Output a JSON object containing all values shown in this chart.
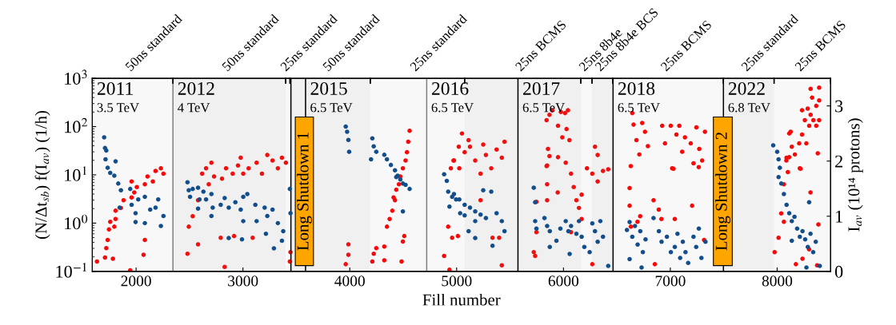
{
  "chart_data": {
    "type": "scatter",
    "xlabel": "Fill number",
    "ylabel": "(N/Δt$_{sb}$) f(I$_{av}$) (1/h)",
    "y2label": "I$_{av}$ (10¹⁴ protons)",
    "xlim": [
      1590,
      8500
    ],
    "xticks": [
      2000,
      3000,
      4000,
      5000,
      6000,
      7000,
      8000
    ],
    "log": "y",
    "ylim": [
      0.1,
      1000
    ],
    "yticks": [
      {
        "value": 0.1,
        "label": "10$^{−1}$"
      },
      {
        "value": 1,
        "label": "10$^{0}$"
      },
      {
        "value": 10,
        "label": "10$^{1}$"
      },
      {
        "value": 100,
        "label": "10$^{2}$"
      },
      {
        "value": 1000,
        "label": "10$^{3}$"
      }
    ],
    "y2lim": [
      0,
      3.5
    ],
    "y2ticks": [
      0,
      1,
      2,
      3
    ],
    "annotations": [
      "2011\n3.5 TeV"
    ],
    "marker": "circle",
    "series": [
      {
        "axis": "y2",
        "color": "#ff0000",
        "x": [
          1634,
          1709,
          1721,
          1734,
          1746,
          1758,
          1783,
          1796,
          1808,
          1808,
          1858,
          1883,
          1958,
          1983,
          1958,
          2007,
          2082,
          2107,
          2157,
          2182,
          2232,
          2256,
          2070,
          2082,
          1945,
          2481,
          2493,
          2530,
          2580,
          2618,
          2655,
          2705,
          2730,
          2680,
          2804,
          2842,
          2904,
          2954,
          2979,
          3003,
          3053,
          3128,
          3178,
          3228,
          3277,
          3327,
          3365,
          2580,
          2792,
          2917,
          3091,
          2829,
          3402,
          3439,
          3445,
          3962,
          3987,
          3987,
          4211,
          4224,
          4248,
          4323,
          4323,
          4348,
          4373,
          4398,
          4410,
          4435,
          4460,
          4473,
          4497,
          4522,
          4535,
          4547,
          4560,
          4497,
          4510,
          4485,
          4423,
          4883,
          4921,
          4958,
          4933,
          4946,
          4971,
          5020,
          4975,
          5025,
          5075,
          5125,
          5174,
          5224,
          5050,
          5112,
          5274,
          5324,
          5374,
          5423,
          5448,
          5249,
          5224,
          5336,
          5398,
          5423,
          5012,
          5842,
          5869,
          5895,
          5976,
          6015,
          6042,
          5949,
          6029,
          5989,
          5855,
          5869,
          5949,
          5842,
          6056,
          5722,
          5735,
          5747,
          5847,
          5847,
          5847,
          5946,
          6021,
          6071,
          6096,
          6121,
          6145,
          6170,
          6220,
          6270,
          6320,
          6370,
          6419,
          6295,
          6320,
          6170,
          6270,
          5747,
          6071,
          6644,
          6656,
          6737,
          6763,
          6683,
          6790,
          6710,
          6630,
          6924,
          7004,
          7057,
          7084,
          7137,
          6950,
          7111,
          7191,
          7271,
          7244,
          7324,
          7217,
          7298,
          7030,
          6619,
          6619,
          6631,
          6693,
          6718,
          6843,
          6892,
          6917,
          7042,
          7204,
          6855,
          7316,
          7017,
          7266,
          8313,
          8393,
          8327,
          8366,
          8393,
          8286,
          8233,
          8313,
          8259,
          8339,
          8393,
          8300,
          8366,
          8233,
          8273,
          8206,
          8166,
          8380,
          8126,
          8113,
          8086,
          8219,
          8113,
          8137,
          8088,
          8100,
          8063,
          8038,
          8063,
          8013,
          7976,
          8175,
          8237,
          8312,
          8386,
          8374,
          8299,
          8212
        ],
        "values": [
          0.18,
          0.25,
          0.42,
          0.57,
          0.76,
          0.9,
          0.23,
          0.81,
          0.95,
          1.1,
          1.15,
          1.29,
          1.34,
          1.43,
          1.63,
          1.53,
          1.58,
          1.72,
          1.63,
          1.82,
          1.87,
          1.77,
          0.3,
          0.57,
          0.02,
          0.32,
          0.81,
          1.0,
          1.29,
          1.77,
          1.87,
          1.97,
          1.72,
          1.58,
          1.68,
          1.87,
          1.77,
          1.92,
          2.06,
          1.77,
          1.87,
          1.97,
          1.77,
          2.11,
          2.01,
          1.87,
          2.06,
          0.49,
          0.61,
          0.64,
          0.61,
          0.08,
          1.97,
          0.18,
          0.35,
          0.13,
          0.3,
          0.49,
          0.18,
          0.32,
          0.42,
          0.45,
          0.2,
          0.81,
          0.95,
          1.1,
          1.34,
          1.48,
          1.58,
          1.72,
          1.87,
          2.01,
          2.16,
          2.35,
          2.55,
          0.54,
          0.64,
          0.18,
          1.29,
          0.28,
          0.81,
          0.61,
          0.03,
          1.87,
          2.01,
          2.26,
          2.01,
          1.87,
          2.16,
          2.26,
          2.01,
          1.77,
          2.5,
          2.38,
          2.11,
          1.87,
          2.21,
          2.06,
          2.35,
          2.3,
          1.29,
          0.61,
          0.61,
          0.11,
          0.64,
          2.74,
          2.84,
          2.92,
          2.89,
          2.87,
          2.92,
          2.64,
          2.58,
          2.43,
          2.22,
          2.09,
          2.07,
          1.91,
          2.38,
          0.35,
          0.28,
          0.71,
          1.29,
          1.58,
          1.92,
          1.43,
          1.97,
          1.77,
          1.53,
          1.29,
          1.15,
          1.39,
          1.87,
          1.77,
          1.63,
          1.82,
          1.85,
          2.26,
          2.11,
          0.95,
          0.13,
          1.26,
          0.71,
          2.87,
          2.66,
          2.69,
          2.53,
          2.38,
          2.27,
          2.12,
          1.91,
          2.64,
          2.64,
          2.48,
          2.64,
          2.43,
          2.32,
          2.17,
          2.32,
          2.22,
          2.61,
          2.53,
          1.96,
          2.01,
          1.86,
          1.51,
          1.19,
          0.81,
          0.9,
          1.0,
          1.29,
          1.12,
          0.95,
          0.95,
          1.19,
          0.13,
          0.57,
          1.87,
          1.89,
          3.31,
          3.33,
          3.15,
          3.0,
          3.1,
          2.95,
          2.92,
          2.84,
          2.74,
          2.74,
          2.74,
          2.64,
          2.64,
          2.48,
          2.32,
          2.32,
          2.12,
          2.14,
          2.53,
          2.07,
          2.01,
          1.86,
          2.5,
          2.26,
          2.06,
          1.8,
          1.58,
          1.05,
          0.9,
          0.61,
          0.35,
          0.13,
          0.23,
          1.43,
          0.85,
          0.11,
          0.4,
          1.87
        ]
      },
      {
        "color": "#124e8c",
        "x": [
          1701,
          1709,
          1721,
          1714,
          1734,
          1758,
          1808,
          1796,
          1833,
          1858,
          1846,
          1945,
          1958,
          1995,
          2020,
          1995,
          2082,
          2082,
          2132,
          2182,
          2232,
          2256,
          2207,
          2481,
          2493,
          2505,
          2530,
          2580,
          2593,
          2630,
          2655,
          2705,
          2717,
          2580,
          2705,
          2792,
          2829,
          2867,
          2929,
          2979,
          3003,
          3041,
          3003,
          3116,
          3128,
          3203,
          3228,
          3277,
          3215,
          3290,
          3327,
          3377,
          3365,
          3439,
          3445,
          2867,
          2991,
          3962,
          3975,
          3987,
          3994,
          4211,
          4224,
          4199,
          4248,
          4323,
          4348,
          4385,
          4423,
          4448,
          4473,
          4497,
          4522,
          4560,
          4435,
          4497,
          4883,
          4908,
          4921,
          4958,
          4995,
          4933,
          5033,
          4975,
          5025,
          5075,
          5125,
          5174,
          5224,
          5274,
          5075,
          5174,
          5249,
          5324,
          5374,
          5423,
          5448,
          5112,
          5174,
          5336,
          5722,
          5735,
          5735,
          5747,
          5822,
          5847,
          5872,
          5872,
          5934,
          5971,
          6021,
          6046,
          6071,
          6121,
          6145,
          6170,
          6195,
          6270,
          6295,
          6320,
          6345,
          6370,
          6419,
          6058,
          6245,
          6594,
          6619,
          6644,
          6669,
          6694,
          6719,
          6768,
          6743,
          6619,
          6843,
          6893,
          6918,
          6968,
          7005,
          7042,
          7067,
          7092,
          7117,
          7142,
          7167,
          7217,
          7242,
          7267,
          7291,
          7329,
          6731,
          7963,
          8000,
          8013,
          8025,
          8013,
          8038,
          8063,
          8088,
          8113,
          8137,
          8162,
          8187,
          8212,
          8237,
          8262,
          8287,
          8312,
          8337,
          8361,
          8399,
          8274,
          8137,
          8299
        ],
        "values": [
          60,
          36,
          32,
          21,
          14,
          11,
          19,
          9.6,
          6.6,
          4.8,
          2.1,
          5.1,
          2.4,
          1.6,
          3.1,
          1.05,
          3.5,
          1.0,
          1.9,
          2.1,
          0.87,
          1.4,
          3.1,
          7.0,
          4.8,
          3.5,
          5.1,
          5.4,
          3.1,
          4.5,
          3.1,
          4.0,
          2.1,
          2.0,
          1.4,
          2.4,
          3.3,
          2.1,
          2.7,
          1.9,
          3.5,
          4.0,
          1.1,
          2.4,
          1.1,
          2.1,
          1.4,
          1.9,
          0.6,
          0.3,
          1.0,
          0.68,
          0.43,
          5.1,
          1.6,
          0.49,
          0.46,
          100,
          78,
          53,
          30,
          57,
          39,
          21,
          30,
          26,
          21,
          16,
          12.4,
          9.6,
          8.0,
          6.6,
          6.2,
          5.1,
          9.0,
          1.75,
          10.3,
          7.5,
          4.5,
          3.5,
          3.1,
          2.2,
          1.6,
          4.0,
          3.1,
          2.4,
          2.1,
          1.75,
          1.5,
          1.27,
          1.44,
          1.1,
          4.8,
          4.5,
          1.6,
          1.1,
          0.68,
          0.68,
          0.49,
          0.34,
          5.4,
          2.7,
          1.1,
          0.77,
          1.27,
          0.87,
          0.68,
          0.32,
          0.43,
          0.77,
          1.1,
          0.68,
          0.87,
          0.6,
          1.1,
          0.52,
          0.32,
          0.99,
          0.68,
          0.41,
          1.1,
          0.52,
          0.13,
          0.23,
          0.25,
          0.72,
          1.05,
          0.52,
          0.87,
          0.36,
          0.68,
          0.46,
          0.25,
          0.18,
          1.27,
          0.68,
          0.41,
          0.52,
          0.25,
          0.32,
          0.6,
          0.19,
          0.41,
          0.25,
          0.15,
          0.52,
          0.32,
          0.77,
          0.19,
          0.41,
          0.12,
          41,
          30,
          21,
          14,
          9.0,
          6.6,
          4.0,
          2.4,
          1.6,
          1.1,
          1.35,
          0.77,
          0.52,
          0.68,
          0.46,
          0.32,
          0.6,
          0.25,
          0.41,
          0.13,
          0.12,
          0.43,
          2.7
        ]
      }
    ],
    "ref_lines": [
      {
        "axis": "x",
        "value": 2345,
        "label": "2012\n4 TeV",
        "color": "#808080"
      },
      {
        "axis": "x",
        "value": 3449,
        "label": null,
        "color": "#000000"
      },
      {
        "axis": "x",
        "value": 3586,
        "label": "2015\n6.5 TeV",
        "color": "#000000"
      },
      {
        "axis": "x",
        "value": 4720,
        "label": "2016\n6.5 TeV",
        "color": "#808080"
      },
      {
        "axis": "x",
        "value": 5574,
        "label": "2017\n6.5 TeV",
        "color": "#000000"
      },
      {
        "axis": "x",
        "value": 6464,
        "label": "2018\n6.5 TeV",
        "color": "#000000"
      },
      {
        "axis": "x",
        "value": 7497,
        "label": "2022\n6.8 TeV",
        "color": "#000000"
      }
    ],
    "bands": [
      {
        "axis": "x",
        "from": 3490,
        "to": 3660,
        "label": "Long Shutdown 1",
        "color": "#ffa500"
      },
      {
        "axis": "x",
        "from": 7403,
        "to": 7580,
        "label": "Long Shutdown 2",
        "color": "#ffa500"
      },
      {
        "axis": "x",
        "from": 1590,
        "to": 2345,
        "label": "50ns standard"
      },
      {
        "axis": "x",
        "from": 2345,
        "to": 3400,
        "label": "50ns standard"
      },
      {
        "axis": "x",
        "from": 3400,
        "to": 3440,
        "label": "25ns standard"
      },
      {
        "axis": "x",
        "from": 3440,
        "to": 4192,
        "label": "50ns standard"
      },
      {
        "axis": "x",
        "from": 4192,
        "to": 5075,
        "label": "25ns standard"
      },
      {
        "axis": "x",
        "from": 5075,
        "to": 6162,
        "label": "25ns BCMS"
      },
      {
        "axis": "x",
        "from": 6162,
        "to": 6267,
        "label": "25ns 8b4e"
      },
      {
        "axis": "x",
        "from": 6267,
        "to": 6462,
        "label": "25ns 8b4e BCS"
      },
      {
        "axis": "x",
        "from": 6462,
        "to": 7497,
        "label": "25ns BCMS"
      },
      {
        "axis": "x",
        "from": 7497,
        "to": 7971,
        "label": "25ns standard"
      },
      {
        "axis": "x",
        "from": 7971,
        "to": 8500,
        "label": "25ns BCMS"
      }
    ]
  }
}
